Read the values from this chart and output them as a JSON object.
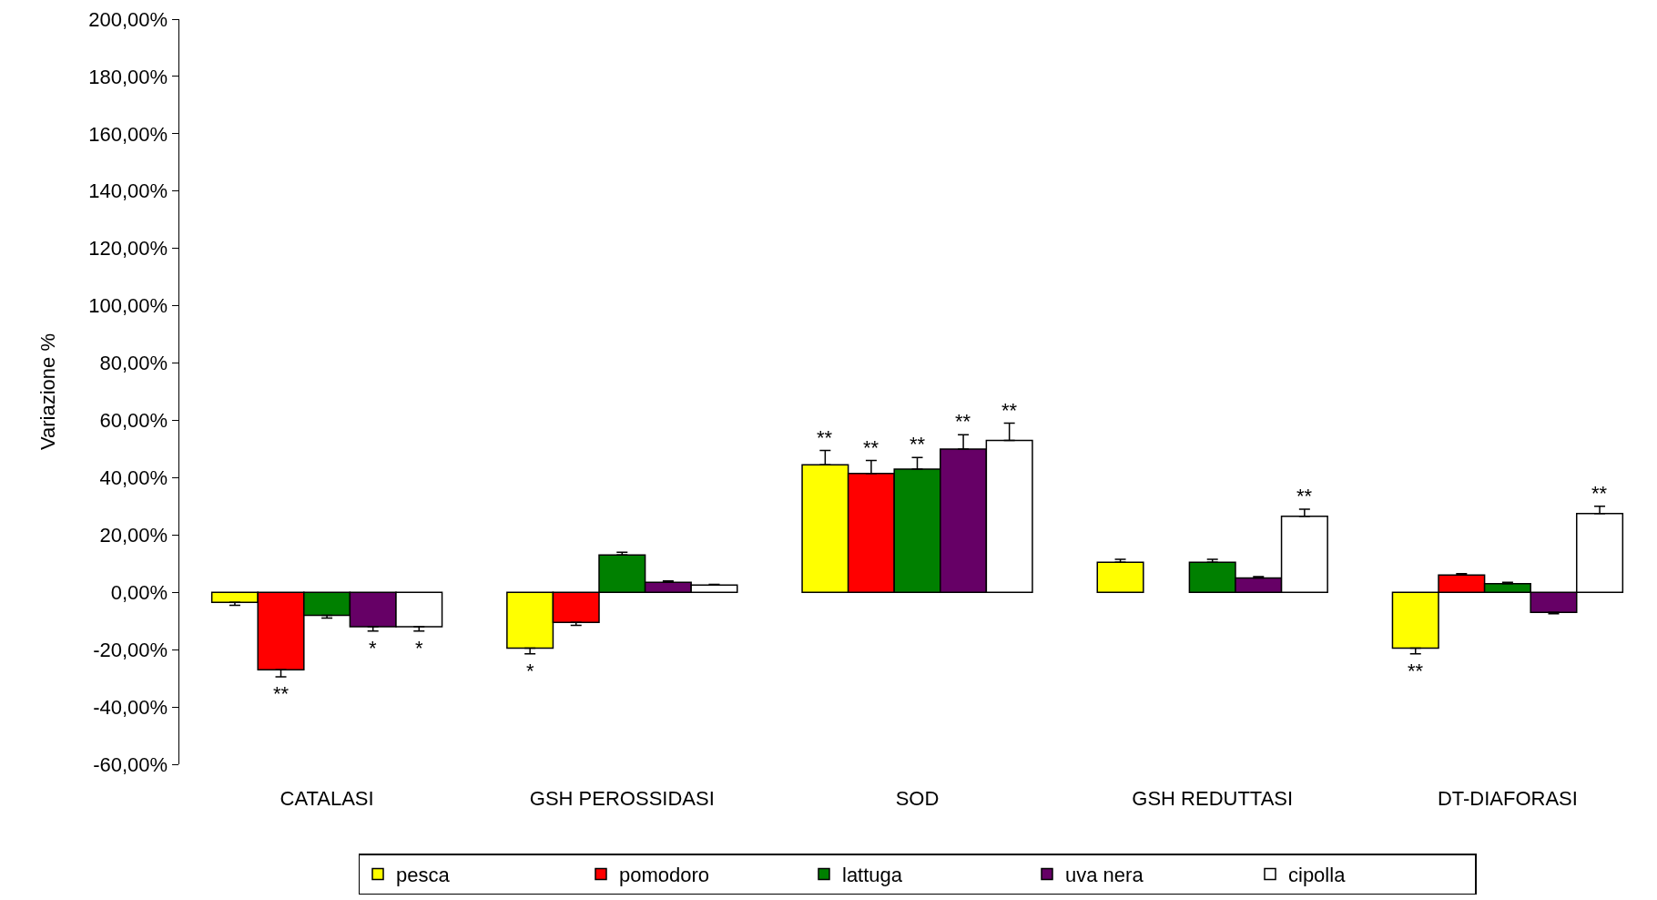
{
  "chart_data": {
    "type": "bar",
    "ylabel": "Variazione %",
    "categories": [
      "CATALASI",
      "GSH PEROSSIDASI",
      "SOD",
      "GSH REDUTTASI",
      "DT-DIAFORASI"
    ],
    "series": [
      {
        "name": "pesca",
        "color": "#ffff00",
        "values": [
          -3.5,
          -19.5,
          44.5,
          10.5,
          -19.5
        ],
        "errors": [
          1,
          2,
          5,
          1,
          2
        ],
        "value_labels": [
          null,
          "*",
          "**",
          null,
          "**"
        ]
      },
      {
        "name": "pomodoro",
        "color": "#ff0000",
        "values": [
          -27,
          -10.5,
          41.5,
          0,
          6
        ],
        "errors": [
          2.5,
          1,
          4.5,
          null,
          0.5
        ],
        "value_labels": [
          "**",
          null,
          "**",
          null,
          null
        ]
      },
      {
        "name": "lattuga",
        "color": "#008000",
        "values": [
          -8,
          13,
          43,
          10.5,
          3
        ],
        "errors": [
          1,
          1,
          4,
          1,
          0.5
        ],
        "value_labels": [
          null,
          null,
          "**",
          null,
          null
        ]
      },
      {
        "name": "uva nera",
        "color": "#660066",
        "values": [
          -12,
          3.5,
          50,
          5,
          -7
        ],
        "errors": [
          1.5,
          0.5,
          5,
          0.5,
          0.5
        ],
        "value_labels": [
          "*",
          null,
          "**",
          null,
          null
        ]
      },
      {
        "name": "cipolla",
        "color": "#ffffff",
        "values": [
          -12,
          2.5,
          53,
          26.5,
          27.5
        ],
        "errors": [
          1.5,
          0.3,
          6,
          2.5,
          2.5
        ],
        "value_labels": [
          "*",
          null,
          "**",
          "**",
          "**"
        ]
      }
    ],
    "ylim": [
      -60,
      200
    ],
    "yticks": [
      {
        "value": -60,
        "label": "-60,00%"
      },
      {
        "value": -40,
        "label": "-40,00%"
      },
      {
        "value": -20,
        "label": "-20,00%"
      },
      {
        "value": 0,
        "label": "0,00%"
      },
      {
        "value": 20,
        "label": "20,00%"
      },
      {
        "value": 40,
        "label": "40,00%"
      },
      {
        "value": 60,
        "label": "60,00%"
      },
      {
        "value": 80,
        "label": "80,00%"
      },
      {
        "value": 100,
        "label": "100,00%"
      },
      {
        "value": 120,
        "label": "120,00%"
      },
      {
        "value": 140,
        "label": "140,00%"
      },
      {
        "value": 160,
        "label": "160,00%"
      },
      {
        "value": 180,
        "label": "180,00%"
      },
      {
        "value": 200,
        "label": "200,00%"
      }
    ],
    "grid": false,
    "legend": "bottom"
  }
}
